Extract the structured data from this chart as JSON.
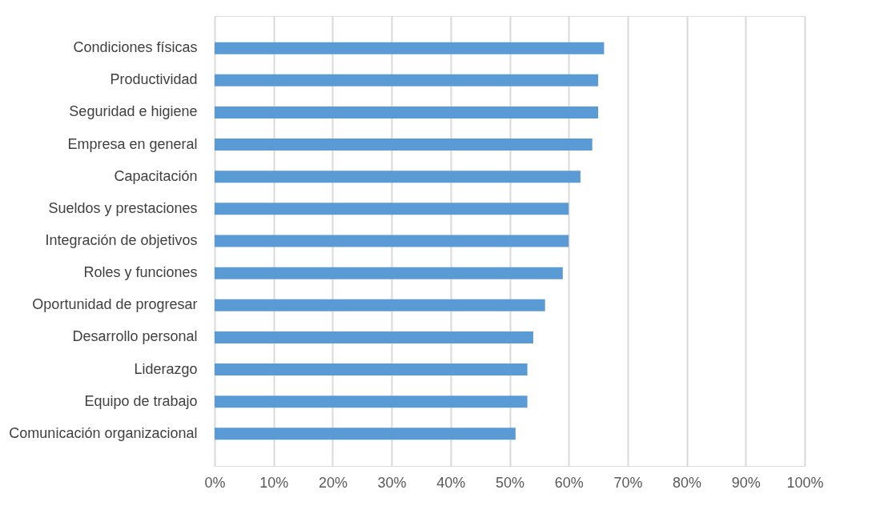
{
  "chart_data": {
    "type": "bar",
    "orientation": "horizontal",
    "categories": [
      "Condiciones físicas",
      "Productividad",
      "Seguridad e higiene",
      "Empresa en general",
      "Capacitación",
      "Sueldos y prestaciones",
      "Integración de objetivos",
      "Roles y funciones",
      "Oportunidad de progresar",
      "Desarrollo personal",
      "Liderazgo",
      "Equipo de trabajo",
      "Comunicación organizacional"
    ],
    "values": [
      66,
      65,
      65,
      64,
      62,
      60,
      60,
      59,
      56,
      54,
      53,
      53,
      51
    ],
    "color": "#5b9bd5",
    "xlim": [
      0,
      100
    ],
    "xticks": [
      {
        "value": 0,
        "label": "0%"
      },
      {
        "value": 10,
        "label": "10%"
      },
      {
        "value": 20,
        "label": "20%"
      },
      {
        "value": 30,
        "label": "30%"
      },
      {
        "value": 40,
        "label": "40%"
      },
      {
        "value": 50,
        "label": "50%"
      },
      {
        "value": 60,
        "label": "60%"
      },
      {
        "value": 70,
        "label": "70%"
      },
      {
        "value": 80,
        "label": "80%"
      },
      {
        "value": 90,
        "label": "90%"
      },
      {
        "value": 100,
        "label": "100%"
      }
    ],
    "grid": "x"
  }
}
